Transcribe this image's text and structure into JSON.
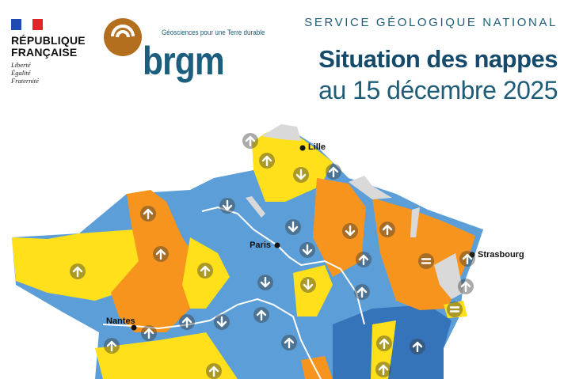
{
  "header": {
    "rf_name_line1": "RÉPUBLIQUE",
    "rf_name_line2": "FRANÇAISE",
    "rf_motto": [
      "Liberté",
      "Égalité",
      "Fraternité"
    ],
    "brgm_tagline": "Géosciences pour une Terre durable",
    "brgm_logo_text": "brgm",
    "service": "SERVICE GÉOLOGIQUE NATIONAL",
    "title_line1": "Situation des nappes",
    "title_line2": "au 15 décembre 2025"
  },
  "map": {
    "colors": {
      "yellow": "#FFE01B",
      "orange": "#F7941D",
      "light_blue": "#5C9FD8",
      "dark_blue": "#3574BA",
      "grey": "#D9D9D9",
      "river": "#FFFFFF"
    },
    "cities": [
      "Lille",
      "Paris",
      "Nantes",
      "Strasbourg"
    ],
    "trend_icons": [
      "up",
      "up",
      "down",
      "up",
      "down",
      "down",
      "down",
      "down",
      "up",
      "up",
      "stable",
      "up",
      "up",
      "stable",
      "up",
      "up",
      "up",
      "up",
      "down",
      "down",
      "up",
      "down",
      "up",
      "up",
      "up",
      "up",
      "up",
      "up",
      "up",
      "up",
      "up"
    ]
  }
}
